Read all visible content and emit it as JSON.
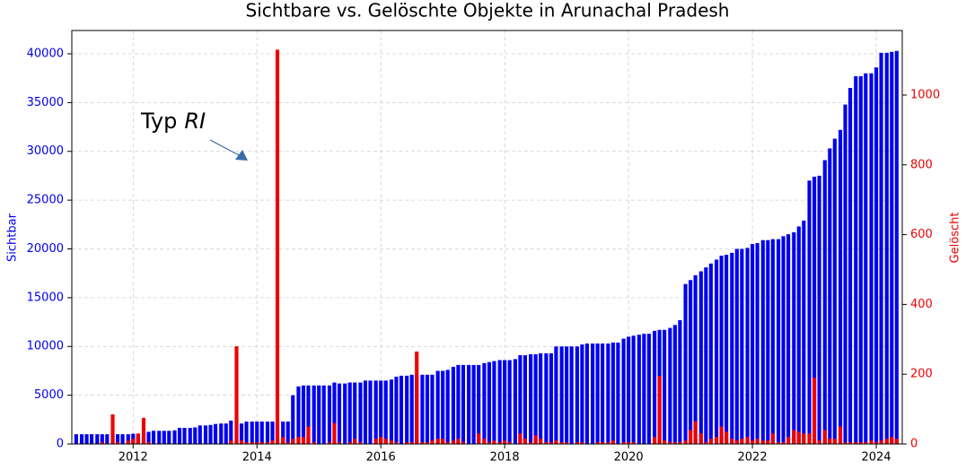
{
  "chart_data": {
    "type": "bar",
    "title": "Sichtbare vs. Gelöschte Objekte in Arunachal Pradesh",
    "y_label": "Sichtbar",
    "y2_label": "Gelöscht",
    "annotation": {
      "text": "Typ",
      "emph": "RI"
    },
    "grid": true,
    "xlim": [
      2011.01,
      2024.42
    ],
    "xticks": [
      2012,
      2014,
      2016,
      2018,
      2020,
      2022,
      2024
    ],
    "ylim": [
      0,
      42390
    ],
    "yticks": [
      0,
      5000,
      10000,
      15000,
      20000,
      25000,
      30000,
      35000,
      40000
    ],
    "y2lim": [
      0,
      1185
    ],
    "y2ticks": [
      0,
      200,
      400,
      600,
      800,
      1000
    ],
    "x": [
      2011.08,
      2011.17,
      2011.25,
      2011.33,
      2011.42,
      2011.5,
      2011.58,
      2011.67,
      2011.75,
      2011.83,
      2011.92,
      2012,
      2012.08,
      2012.17,
      2012.25,
      2012.33,
      2012.42,
      2012.5,
      2012.58,
      2012.67,
      2012.75,
      2012.83,
      2012.92,
      2013,
      2013.08,
      2013.17,
      2013.25,
      2013.33,
      2013.42,
      2013.5,
      2013.58,
      2013.67,
      2013.75,
      2013.83,
      2013.92,
      2014,
      2014.08,
      2014.17,
      2014.25,
      2014.33,
      2014.42,
      2014.5,
      2014.58,
      2014.67,
      2014.75,
      2014.83,
      2014.92,
      2015,
      2015.08,
      2015.17,
      2015.25,
      2015.33,
      2015.42,
      2015.5,
      2015.58,
      2015.67,
      2015.75,
      2015.83,
      2015.92,
      2016,
      2016.08,
      2016.17,
      2016.25,
      2016.33,
      2016.42,
      2016.5,
      2016.58,
      2016.67,
      2016.75,
      2016.83,
      2016.92,
      2017,
      2017.08,
      2017.17,
      2017.25,
      2017.33,
      2017.42,
      2017.5,
      2017.58,
      2017.67,
      2017.75,
      2017.83,
      2017.92,
      2018,
      2018.08,
      2018.17,
      2018.25,
      2018.33,
      2018.42,
      2018.5,
      2018.58,
      2018.67,
      2018.75,
      2018.83,
      2018.92,
      2019,
      2019.08,
      2019.17,
      2019.25,
      2019.33,
      2019.42,
      2019.5,
      2019.58,
      2019.67,
      2019.75,
      2019.83,
      2019.92,
      2020,
      2020.08,
      2020.17,
      2020.25,
      2020.33,
      2020.42,
      2020.5,
      2020.58,
      2020.67,
      2020.75,
      2020.83,
      2020.92,
      2021,
      2021.08,
      2021.17,
      2021.25,
      2021.33,
      2021.42,
      2021.5,
      2021.58,
      2021.67,
      2021.75,
      2021.83,
      2021.92,
      2022,
      2022.08,
      2022.17,
      2022.25,
      2022.33,
      2022.42,
      2022.5,
      2022.58,
      2022.67,
      2022.75,
      2022.83,
      2022.92,
      2023,
      2023.08,
      2023.17,
      2023.25,
      2023.33,
      2023.42,
      2023.5,
      2023.58,
      2023.67,
      2023.75,
      2023.83,
      2023.92,
      2024,
      2024.08,
      2024.17,
      2024.25,
      2024.33
    ],
    "series": [
      {
        "name": "Sichtbar",
        "color": "#0000ee",
        "axis": "y",
        "values": [
          1000,
          1000,
          1000,
          1000,
          1000,
          1000,
          1000,
          1000,
          1000,
          1000,
          1000,
          1050,
          1050,
          1100,
          1250,
          1350,
          1350,
          1350,
          1350,
          1400,
          1650,
          1650,
          1650,
          1700,
          1900,
          1900,
          1950,
          2050,
          2100,
          2100,
          2400,
          2400,
          2100,
          2300,
          2300,
          2300,
          2300,
          2300,
          2300,
          2300,
          2300,
          2300,
          5000,
          5900,
          6000,
          6000,
          6000,
          6000,
          6000,
          6000,
          6300,
          6200,
          6200,
          6300,
          6300,
          6300,
          6500,
          6500,
          6500,
          6500,
          6500,
          6600,
          6900,
          7000,
          7000,
          7100,
          7100,
          7100,
          7100,
          7100,
          7500,
          7500,
          7600,
          7900,
          8100,
          8100,
          8100,
          8100,
          8100,
          8300,
          8400,
          8500,
          8600,
          8600,
          8600,
          8700,
          9100,
          9100,
          9200,
          9200,
          9300,
          9300,
          9300,
          10000,
          10000,
          10000,
          10000,
          10000,
          10200,
          10300,
          10300,
          10300,
          10300,
          10300,
          10400,
          10400,
          10800,
          11000,
          11100,
          11200,
          11300,
          11300,
          11600,
          11700,
          11700,
          11900,
          12200,
          12700,
          16400,
          16800,
          17300,
          17700,
          18100,
          18500,
          18900,
          19300,
          19400,
          19600,
          20000,
          20000,
          20100,
          20500,
          20600,
          20900,
          20900,
          21000,
          21000,
          21300,
          21500,
          21700,
          22300,
          22900,
          27000,
          27400,
          27500,
          29100,
          30300,
          31300,
          32200,
          34800,
          36500,
          37700,
          37700,
          38000,
          38000,
          38600,
          40100,
          40100,
          40200,
          40300
        ]
      },
      {
        "name": "Gelöscht",
        "color": "#ee0000",
        "axis": "y2",
        "values": [
          0,
          0,
          0,
          0,
          0,
          5,
          0,
          85,
          5,
          0,
          10,
          15,
          30,
          75,
          5,
          0,
          0,
          0,
          0,
          0,
          0,
          0,
          0,
          0,
          0,
          0,
          0,
          0,
          0,
          0,
          10,
          280,
          10,
          5,
          5,
          5,
          5,
          5,
          10,
          1130,
          20,
          5,
          15,
          20,
          20,
          50,
          5,
          0,
          0,
          5,
          60,
          5,
          0,
          5,
          15,
          5,
          0,
          0,
          15,
          20,
          15,
          10,
          5,
          0,
          5,
          5,
          265,
          5,
          5,
          10,
          15,
          15,
          5,
          10,
          15,
          5,
          0,
          0,
          30,
          15,
          5,
          10,
          5,
          10,
          5,
          0,
          30,
          15,
          5,
          25,
          15,
          5,
          5,
          10,
          5,
          5,
          0,
          5,
          5,
          0,
          0,
          5,
          5,
          5,
          10,
          0,
          5,
          5,
          5,
          0,
          0,
          0,
          20,
          195,
          10,
          5,
          5,
          5,
          10,
          40,
          65,
          30,
          5,
          15,
          20,
          50,
          35,
          15,
          10,
          15,
          20,
          10,
          15,
          10,
          10,
          30,
          5,
          5,
          20,
          40,
          35,
          30,
          30,
          190,
          10,
          40,
          15,
          15,
          50,
          5,
          5,
          5,
          5,
          5,
          10,
          5,
          10,
          15,
          20,
          15
        ]
      }
    ]
  }
}
